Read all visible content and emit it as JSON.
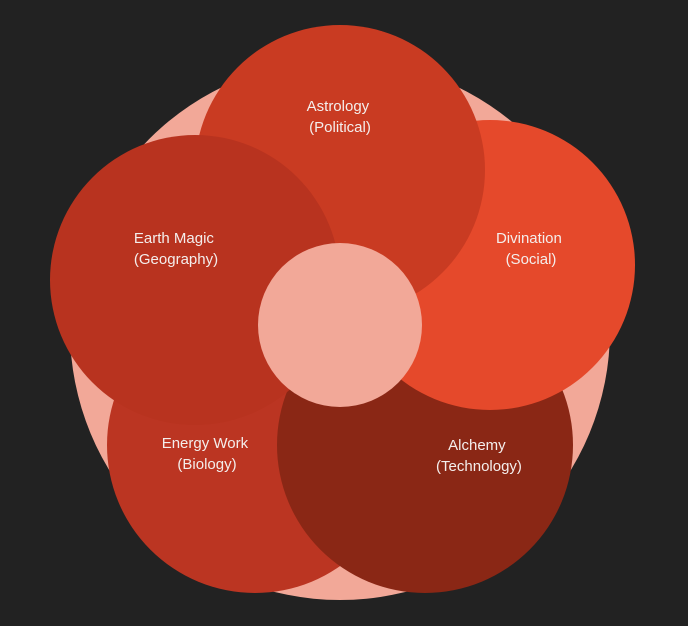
{
  "diagram": {
    "colors": {
      "background": "#222222",
      "outer_ring": "#f2a898",
      "center_disc": "#f2a898",
      "label_text": "#f4eeec"
    },
    "petals": [
      {
        "id": "energy",
        "title": "Energy Work",
        "subtitle": "(Biology)",
        "color": "#bb3522"
      },
      {
        "id": "alchemy",
        "title": "Alchemy",
        "subtitle": "(Technology)",
        "color": "#8a2715"
      },
      {
        "id": "divination",
        "title": "Divination",
        "subtitle": "(Social)",
        "color": "#e5492b"
      },
      {
        "id": "astrology",
        "title": "Astrology",
        "subtitle": "(Political)",
        "color": "#c93b22"
      },
      {
        "id": "earth",
        "title": "Earth Magic",
        "subtitle": "(Geography)",
        "color": "#b8331f"
      }
    ]
  }
}
